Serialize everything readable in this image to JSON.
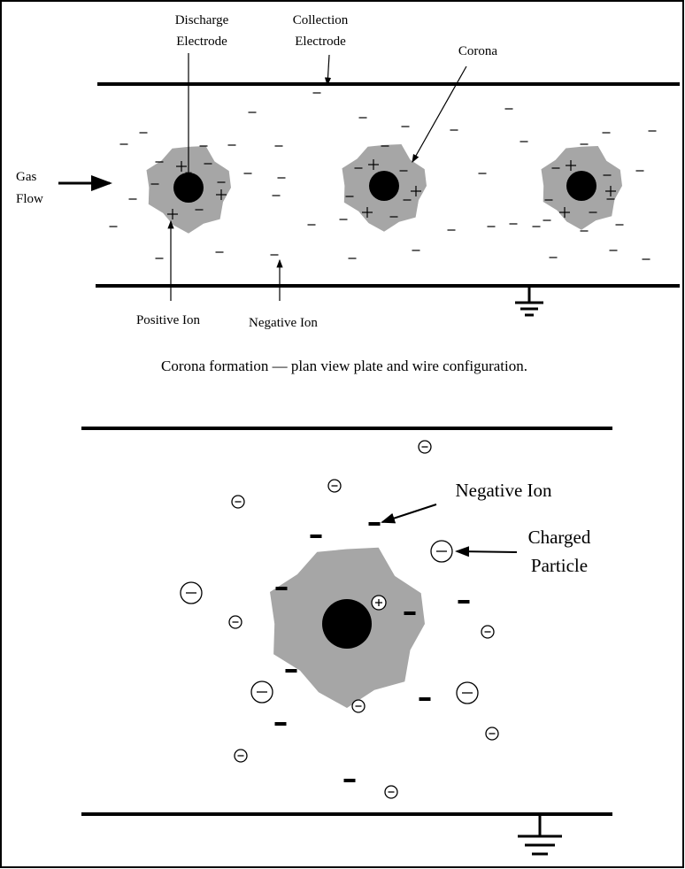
{
  "top": {
    "discharge_electrode": [
      "Discharge",
      "Electrode"
    ],
    "collection_electrode": [
      "Collection",
      "Electrode"
    ],
    "corona": "Corona",
    "gas_flow": [
      "Gas",
      "Flow"
    ],
    "positive_ion": "Positive Ion",
    "negative_ion": "Negative Ion",
    "caption": "Corona formation — plan view plate and wire configuration."
  },
  "bottom": {
    "negative_ion": "Negative Ion",
    "charged_particle": [
      "Charged",
      "Particle"
    ]
  }
}
